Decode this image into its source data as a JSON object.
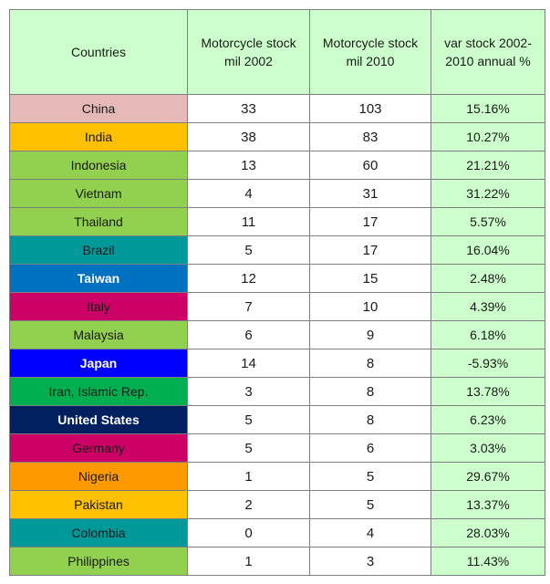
{
  "table": {
    "headers": [
      "Countries",
      "Motorcycle stock mil 2002",
      "Motorcycle stock mil 2010",
      "var stock 2002-2010 annual %"
    ],
    "rows": [
      {
        "country": "China",
        "s2002": "33",
        "s2010": "103",
        "var": "15.16%",
        "color": "#e6b8b7",
        "text_color": "#1a1a1a"
      },
      {
        "country": "India",
        "s2002": "38",
        "s2010": "83",
        "var": "10.27%",
        "color": "#ffc000",
        "text_color": "#1a1a1a"
      },
      {
        "country": "Indonesia",
        "s2002": "13",
        "s2010": "60",
        "var": "21.21%",
        "color": "#92d050",
        "text_color": "#1a1a1a"
      },
      {
        "country": "Vietnam",
        "s2002": "4",
        "s2010": "31",
        "var": "31.22%",
        "color": "#92d050",
        "text_color": "#1a1a1a"
      },
      {
        "country": "Thailand",
        "s2002": "11",
        "s2010": "17",
        "var": "5.57%",
        "color": "#92d050",
        "text_color": "#1a1a1a"
      },
      {
        "country": "Brazil",
        "s2002": "5",
        "s2010": "17",
        "var": "16.04%",
        "color": "#009999",
        "text_color": "#1a1a1a"
      },
      {
        "country": "Taiwan",
        "s2002": "12",
        "s2010": "15",
        "var": "2.48%",
        "color": "#0070c0",
        "text_color": "#ffffff"
      },
      {
        "country": "Italy",
        "s2002": "7",
        "s2010": "10",
        "var": "4.39%",
        "color": "#cc0066",
        "text_color": "#1a1a1a"
      },
      {
        "country": "Malaysia",
        "s2002": "6",
        "s2010": "9",
        "var": "6.18%",
        "color": "#92d050",
        "text_color": "#1a1a1a"
      },
      {
        "country": "Japan",
        "s2002": "14",
        "s2010": "8",
        "var": "-5.93%",
        "color": "#0000ff",
        "text_color": "#ffffff"
      },
      {
        "country": "Iran, Islamic Rep.",
        "s2002": "3",
        "s2010": "8",
        "var": "13.78%",
        "color": "#00b050",
        "text_color": "#1a1a1a"
      },
      {
        "country": "United States",
        "s2002": "5",
        "s2010": "8",
        "var": "6.23%",
        "color": "#002060",
        "text_color": "#ffffff"
      },
      {
        "country": "Germany",
        "s2002": "5",
        "s2010": "6",
        "var": "3.03%",
        "color": "#cc0066",
        "text_color": "#1a1a1a"
      },
      {
        "country": "Nigeria",
        "s2002": "1",
        "s2010": "5",
        "var": "29.67%",
        "color": "#ff9900",
        "text_color": "#1a1a1a"
      },
      {
        "country": "Pakistan",
        "s2002": "2",
        "s2010": "5",
        "var": "13.37%",
        "color": "#ffc000",
        "text_color": "#1a1a1a"
      },
      {
        "country": "Colombia",
        "s2002": "0",
        "s2010": "4",
        "var": "28.03%",
        "color": "#009999",
        "text_color": "#1a1a1a"
      },
      {
        "country": "Philippines",
        "s2002": "1",
        "s2010": "3",
        "var": "11.43%",
        "color": "#92d050",
        "text_color": "#1a1a1a"
      }
    ]
  }
}
